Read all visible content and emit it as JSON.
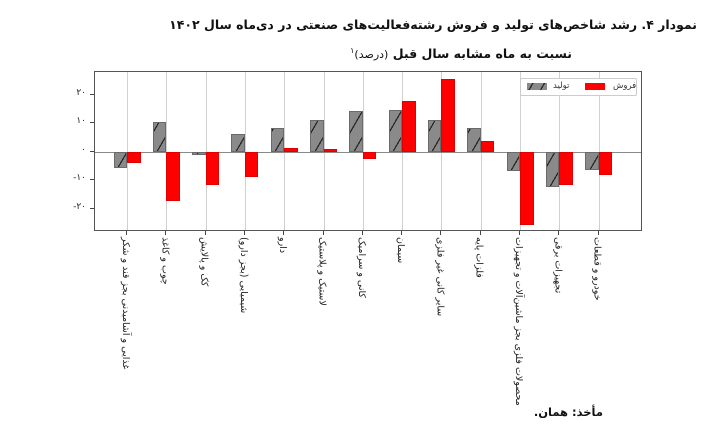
{
  "chart_data": {
    "type": "bar",
    "title": "نمودار ۴. رشد شاخص‌های تولید و فروش رشته‌فعالیت‌های صنعتی در دی‌ماه سال ۱۴۰۲",
    "subtitle": "نسبت به ماه مشابه سال قبل",
    "unit_note": "(درصد)",
    "footnote_mark": "۱",
    "xlabel": "",
    "ylabel": "",
    "ylim": [
      -26,
      27
    ],
    "grid": "vertical",
    "legend_position": "upper right",
    "yticks": [
      {
        "value": 20,
        "label": "۲۰"
      },
      {
        "value": 10,
        "label": "۱۰"
      },
      {
        "value": 0,
        "label": "۰"
      },
      {
        "value": -10,
        "label": "-۱۰"
      },
      {
        "value": -20,
        "label": "-۲۰"
      }
    ],
    "categories": [
      "غذایی و آشامیدنی بجز قند و شکر",
      "چوب و کاغذ",
      "کک و پالایش",
      "شیمیایی (بجز دارو)",
      "دارو",
      "لاستیک و پلاستیک",
      "کانی و سرامیک",
      "سیمان",
      "سایر کانی غیر فلزی",
      "فلزات پایه",
      "محصولات فلزی بجز ماشین‌آلات و تجهیزات",
      "تجهیزات برقی",
      "خودرو و قطعات"
    ],
    "series": [
      {
        "name": "تولید",
        "color": "#8a8a8a",
        "pattern": "hatched",
        "values": [
          -5.8,
          10.4,
          -1.2,
          6.1,
          8.4,
          11.1,
          14.4,
          14.7,
          11.2,
          8.4,
          -6.9,
          -12.5,
          -6.3
        ]
      },
      {
        "name": "فروش",
        "color": "#ff0000",
        "pattern": "solid",
        "values": [
          -4.0,
          -17.4,
          -11.7,
          -8.8,
          1.3,
          1.1,
          -2.6,
          17.7,
          25.5,
          3.9,
          -25.6,
          -11.6,
          -8.3
        ]
      }
    ]
  },
  "footer": {
    "source": "مأخذ: همان."
  }
}
